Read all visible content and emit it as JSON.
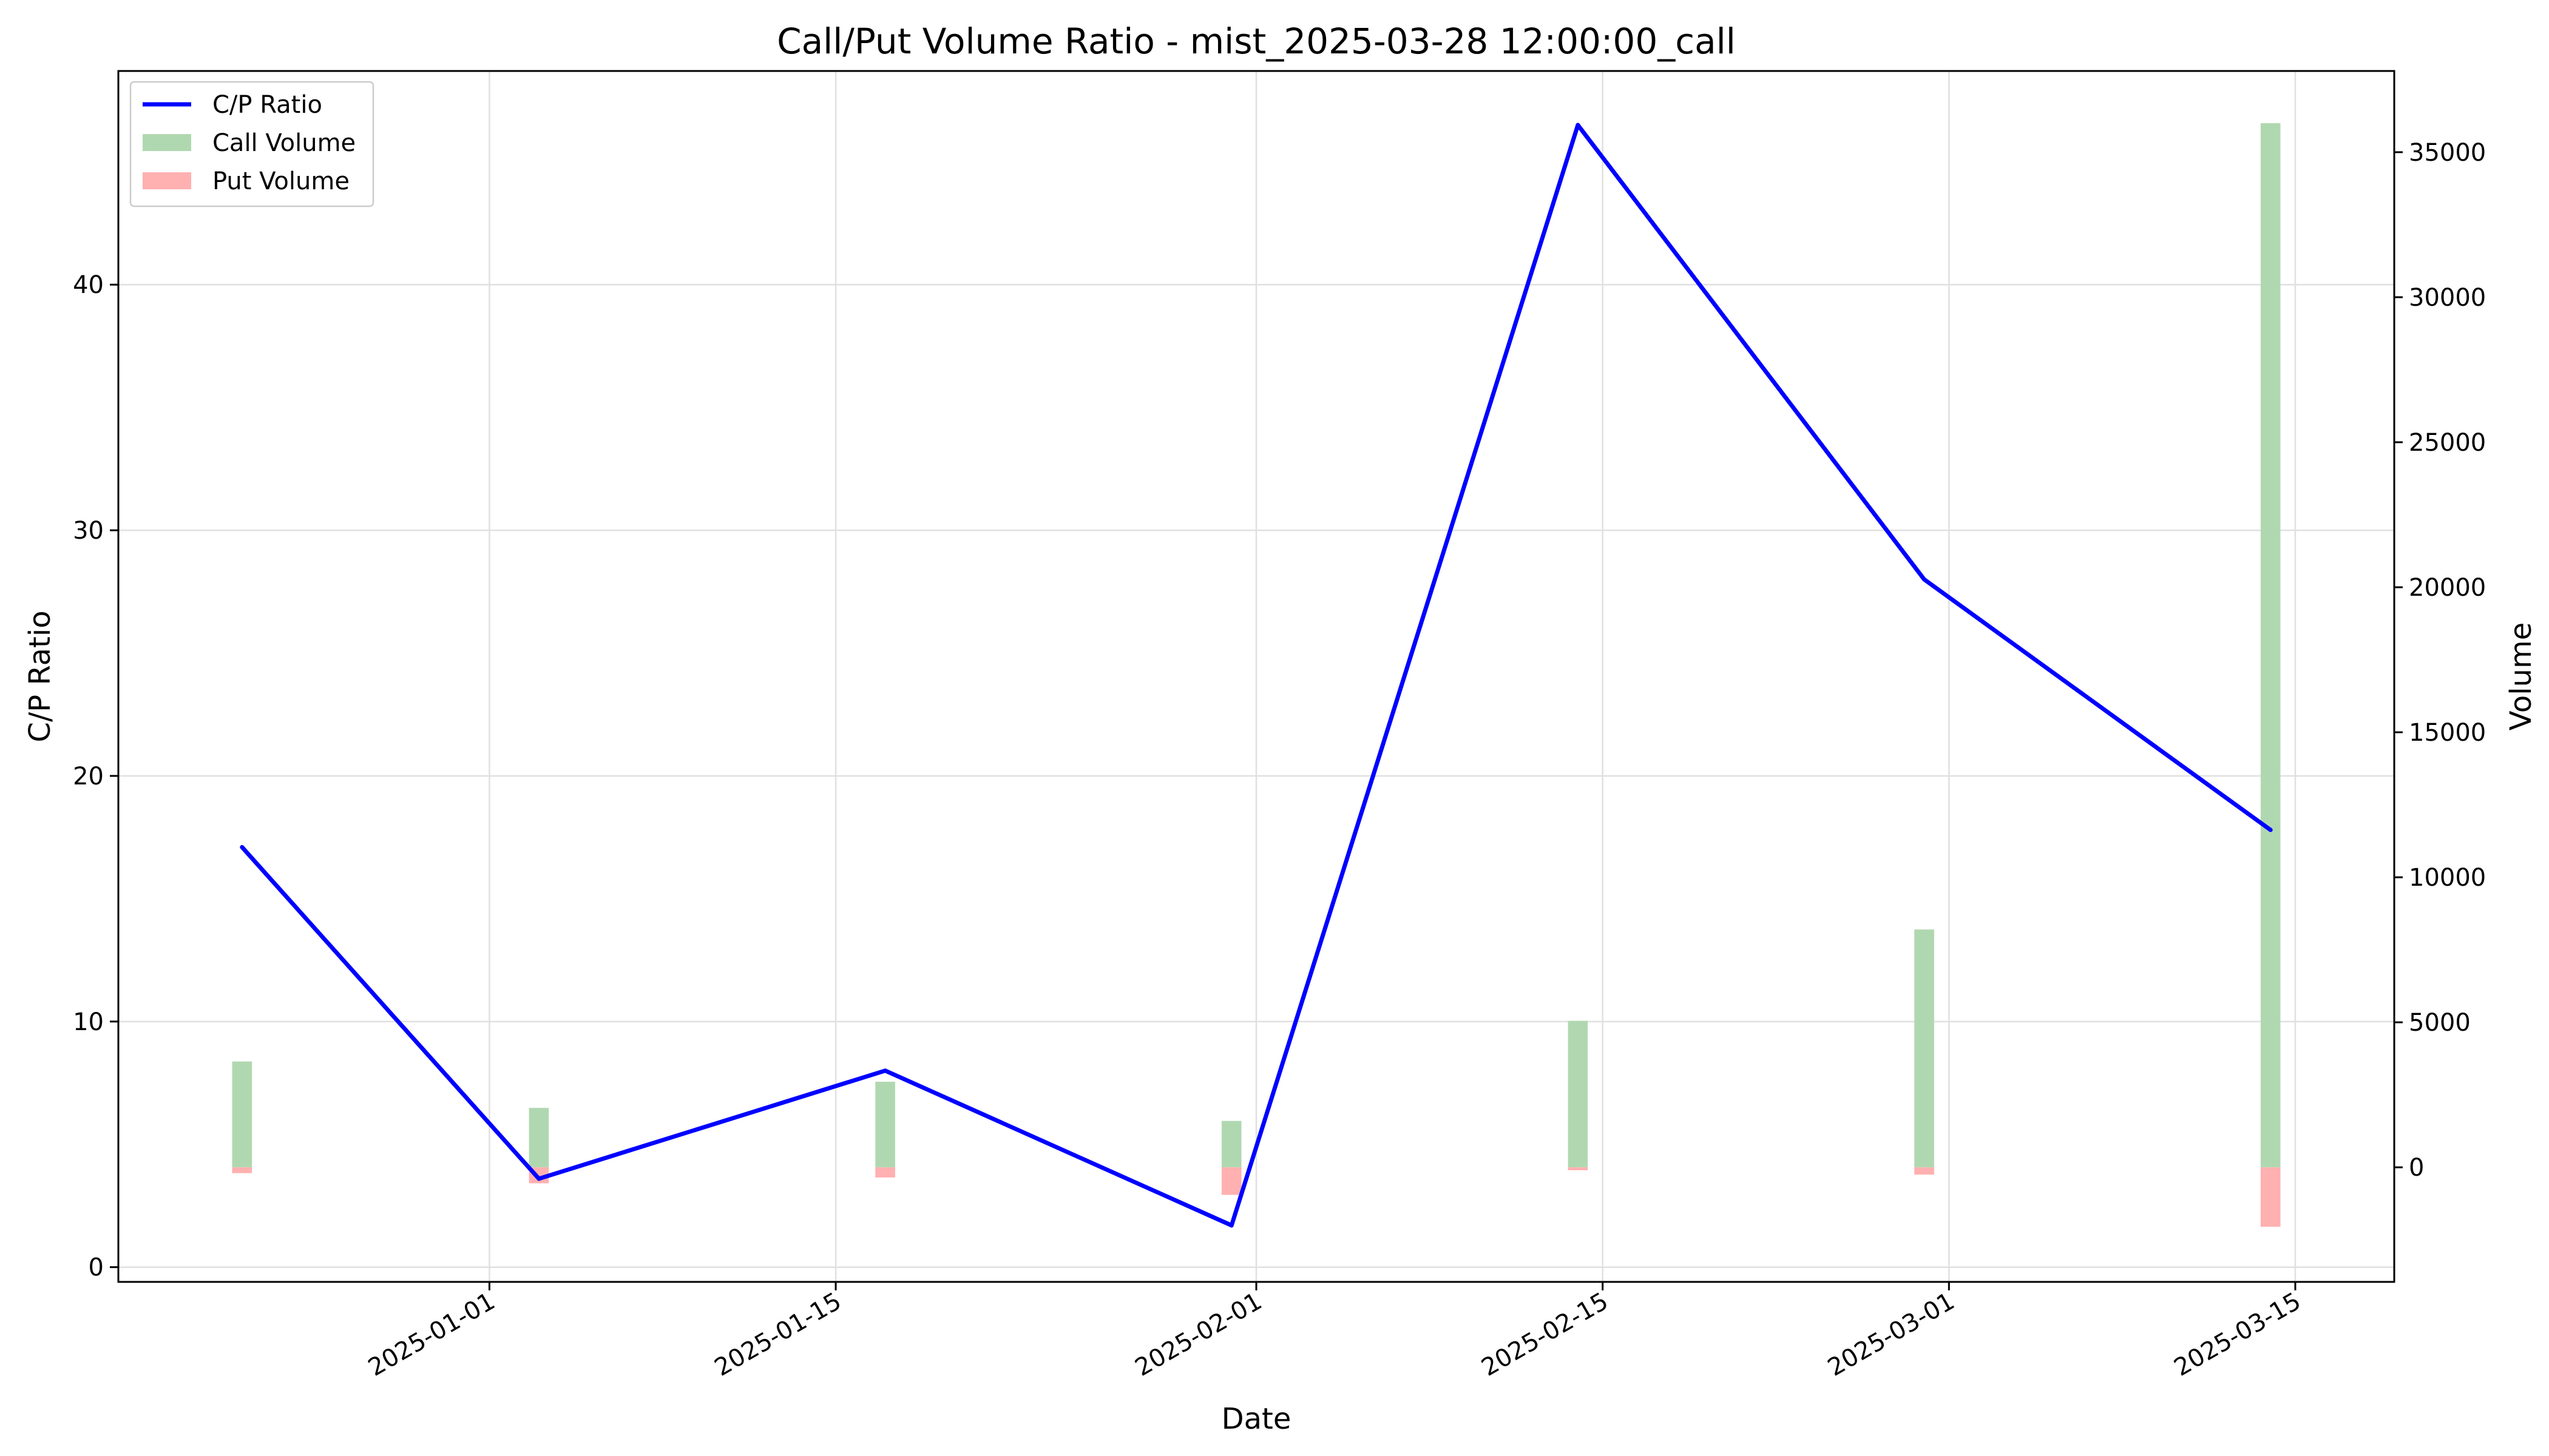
{
  "chart_data": {
    "type": "line+bar",
    "title": "Call/Put Volume Ratio - mist_2025-03-28 12:00:00_call",
    "xlabel": "Date",
    "ylabel_left": "C/P Ratio",
    "ylabel_right": "Volume",
    "x": [
      "2024-12-22",
      "2025-01-03",
      "2025-01-17",
      "2025-01-31",
      "2025-02-14",
      "2025-02-28",
      "2025-03-14"
    ],
    "x_ticks": [
      "2025-01-01",
      "2025-01-15",
      "2025-02-01",
      "2025-02-15",
      "2025-03-01",
      "2025-03-15"
    ],
    "y_left_ticks": [
      0,
      10,
      20,
      30,
      40
    ],
    "y_right_ticks": [
      0,
      5000,
      10000,
      15000,
      20000,
      25000,
      30000,
      35000
    ],
    "ylim_left": [
      -0.6,
      48.7
    ],
    "ylim_right": [
      -3950,
      37800
    ],
    "xlim": [
      "2024-12-17",
      "2025-03-19"
    ],
    "series": [
      {
        "name": "C/P Ratio",
        "axis": "left",
        "kind": "line",
        "color": "#0000ff",
        "values": [
          17.1,
          3.6,
          8.0,
          1.7,
          46.5,
          28.0,
          17.8
        ]
      },
      {
        "name": "Call Volume",
        "axis": "right",
        "kind": "bar",
        "color": "#b0d8b0",
        "values": [
          3650,
          2050,
          2950,
          1600,
          5050,
          8200,
          36000
        ]
      },
      {
        "name": "Put Volume",
        "axis": "right",
        "kind": "bar",
        "color": "#ffb0b0",
        "values": [
          -200,
          -550,
          -350,
          -950,
          -100,
          -250,
          -2050
        ]
      }
    ],
    "grid": true,
    "legend": "top-left"
  }
}
